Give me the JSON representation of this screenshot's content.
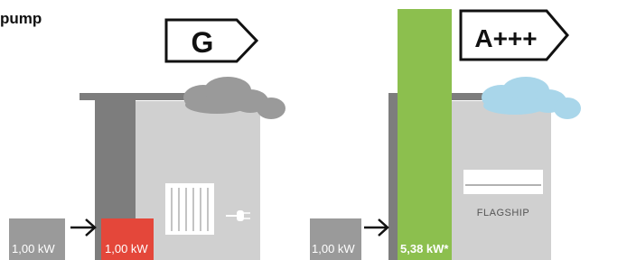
{
  "title": "pump",
  "left": {
    "rating": "G",
    "input": "1,00 kW",
    "output": "1,00 kW"
  },
  "right": {
    "rating": "A+++",
    "input": "1,00 kW",
    "output": "5,38 kW*",
    "brand": "FLAGSHIP"
  }
}
